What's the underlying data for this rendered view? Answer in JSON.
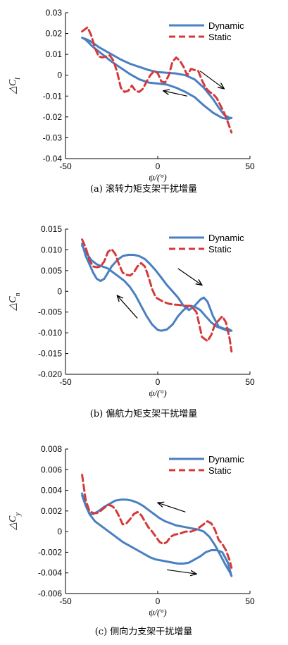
{
  "chart_data": [
    {
      "type": "line",
      "caption": "(a) 滚转力矩支架干扰增量",
      "xlabel": "ψ/(°)",
      "ylabel": "△C",
      "ylabel_sub": "l",
      "xlim": [
        -50,
        50
      ],
      "ylim": [
        -0.04,
        0.03
      ],
      "xticks": [
        -50,
        0,
        50
      ],
      "yticks": [
        -0.04,
        -0.03,
        -0.02,
        -0.01,
        0,
        0.01,
        0.02,
        0.03
      ],
      "ytick_labels": [
        "-0.04",
        "-0.03",
        "-0.02",
        "-0.01",
        "0",
        "0.01",
        "0.02",
        "0.03"
      ],
      "legend_position": "top-right",
      "series": [
        {
          "name": "Dynamic",
          "color": "#4a7fc1",
          "style": "solid",
          "x": [
            -41,
            -38,
            -35,
            -32,
            -28,
            -24,
            -20,
            -15,
            -10,
            -5,
            0,
            5,
            10,
            15,
            20,
            25,
            30,
            33,
            36,
            39,
            40,
            38,
            35,
            30,
            25,
            20,
            15,
            10,
            5,
            0,
            -5,
            -10,
            -15,
            -20,
            -25,
            -30,
            -35,
            -39,
            -41
          ],
          "y": [
            0.018,
            0.017,
            0.0155,
            0.0135,
            0.0115,
            0.0095,
            0.0075,
            0.0055,
            0.004,
            0.0025,
            0.0015,
            0.0012,
            0.0008,
            0.0,
            -0.002,
            -0.006,
            -0.0115,
            -0.0155,
            -0.019,
            -0.0205,
            -0.0205,
            -0.021,
            -0.0205,
            -0.018,
            -0.0145,
            -0.0105,
            -0.008,
            -0.006,
            -0.0045,
            -0.004,
            -0.0035,
            -0.002,
            0.0005,
            0.0035,
            0.0065,
            0.01,
            0.0135,
            0.017,
            0.018
          ]
        },
        {
          "name": "Static",
          "color": "#d43a3a",
          "style": "dashed",
          "x": [
            -41,
            -38,
            -36,
            -34,
            -32,
            -30,
            -28,
            -26,
            -24,
            -22,
            -20,
            -18,
            -16,
            -14,
            -12,
            -10,
            -8,
            -6,
            -4,
            -2,
            0,
            2,
            4,
            6,
            8,
            10,
            12,
            14,
            16,
            18,
            20,
            22,
            24,
            26,
            28,
            30,
            32,
            34,
            36,
            38,
            40
          ],
          "y": [
            0.021,
            0.023,
            0.019,
            0.013,
            0.009,
            0.0085,
            0.009,
            0.0095,
            0.007,
            0.0015,
            -0.006,
            -0.008,
            -0.0075,
            -0.005,
            -0.0075,
            -0.008,
            -0.0065,
            -0.003,
            0.0,
            0.002,
            0.001,
            -0.003,
            -0.0035,
            0.0,
            0.0065,
            0.0085,
            0.007,
            0.004,
            0.0,
            0.003,
            0.0025,
            0.002,
            -0.0025,
            -0.006,
            -0.008,
            -0.009,
            -0.011,
            -0.0145,
            -0.018,
            -0.0225,
            -0.0275
          ]
        }
      ],
      "arrows": [
        {
          "from": [
            23,
            0.002
          ],
          "to": [
            36,
            -0.0065
          ]
        },
        {
          "from": [
            16,
            -0.01
          ],
          "to": [
            3,
            -0.0075
          ]
        }
      ]
    },
    {
      "type": "line",
      "caption": "(b) 偏航力矩支架干扰增量",
      "xlabel": "ψ/(°)",
      "ylabel": "△C",
      "ylabel_sub": "n",
      "xlim": [
        -50,
        50
      ],
      "ylim": [
        -0.02,
        0.015
      ],
      "xticks": [
        -50,
        0,
        50
      ],
      "yticks": [
        -0.02,
        -0.015,
        -0.01,
        -0.005,
        0,
        0.005,
        0.01,
        0.015
      ],
      "ytick_labels": [
        "-0.020",
        "-0.015",
        "-0.010",
        "-0.005",
        "0",
        "0.005",
        "0.010",
        "0.015"
      ],
      "legend_position": "top-right",
      "series": [
        {
          "name": "Dynamic",
          "color": "#4a7fc1",
          "style": "solid",
          "x": [
            -41,
            -39,
            -37,
            -35,
            -33,
            -31,
            -29,
            -27,
            -25,
            -22,
            -19,
            -16,
            -13,
            -10,
            -7,
            -4,
            -1,
            2,
            5,
            8,
            11,
            14,
            17,
            20,
            23,
            25,
            27,
            30,
            33,
            36,
            38,
            40,
            38,
            35,
            32,
            29,
            26,
            23,
            20,
            17,
            14,
            11,
            8,
            5,
            2,
            0,
            -3,
            -6,
            -9,
            -12,
            -15,
            -18,
            -21,
            -24,
            -27,
            -30,
            -33,
            -36,
            -39,
            -41
          ],
          "y": [
            0.0115,
            0.0085,
            0.0065,
            0.0045,
            0.003,
            0.0025,
            0.003,
            0.0045,
            0.006,
            0.0075,
            0.0085,
            0.0088,
            0.0088,
            0.0085,
            0.0078,
            0.0065,
            0.005,
            0.0033,
            0.0015,
            0.0,
            -0.0015,
            -0.0035,
            -0.0045,
            -0.0035,
            -0.002,
            -0.0015,
            -0.0025,
            -0.006,
            -0.0085,
            -0.009,
            -0.009,
            -0.0095,
            -0.0095,
            -0.009,
            -0.0085,
            -0.0075,
            -0.006,
            -0.0045,
            -0.0037,
            -0.0035,
            -0.0045,
            -0.006,
            -0.008,
            -0.0092,
            -0.0095,
            -0.0093,
            -0.008,
            -0.006,
            -0.0035,
            -0.001,
            0.001,
            0.0025,
            0.0035,
            0.0045,
            0.0055,
            0.006,
            0.0065,
            0.0075,
            0.0095,
            0.011
          ]
        },
        {
          "name": "Static",
          "color": "#d43a3a",
          "style": "dashed",
          "x": [
            -41,
            -39,
            -37,
            -35,
            -33,
            -31,
            -29,
            -27,
            -25,
            -23,
            -21,
            -19,
            -17,
            -15,
            -13,
            -11,
            -9,
            -7,
            -5,
            -3,
            -1,
            1,
            3,
            6,
            9,
            12,
            15,
            18,
            21,
            24,
            27,
            29,
            31,
            33,
            35,
            37,
            39,
            40
          ],
          "y": [
            0.0125,
            0.0105,
            0.0075,
            0.006,
            0.0058,
            0.006,
            0.0072,
            0.0095,
            0.0102,
            0.009,
            0.0065,
            0.0045,
            0.004,
            0.0038,
            0.0045,
            0.006,
            0.0068,
            0.006,
            0.0035,
            0.0005,
            -0.0015,
            -0.002,
            -0.0025,
            -0.003,
            -0.0032,
            -0.0033,
            -0.0035,
            -0.0035,
            -0.005,
            -0.011,
            -0.012,
            -0.0105,
            -0.008,
            -0.007,
            -0.006,
            -0.0075,
            -0.0115,
            -0.0145
          ]
        }
      ],
      "arrows": [
        {
          "from": [
            11,
            0.0055
          ],
          "to": [
            24,
            0.0015
          ]
        },
        {
          "from": [
            -11,
            -0.0065
          ],
          "to": [
            -22,
            -0.001
          ]
        }
      ]
    },
    {
      "type": "line",
      "caption": "(c) 侧向力支架干扰增量",
      "xlabel": "ψ/(°)",
      "ylabel": "△C",
      "ylabel_sub": "y",
      "xlim": [
        -50,
        50
      ],
      "ylim": [
        -0.006,
        0.008
      ],
      "xticks": [
        -50,
        0,
        50
      ],
      "yticks": [
        -0.006,
        -0.004,
        -0.002,
        0,
        0.002,
        0.004,
        0.006,
        0.008
      ],
      "ytick_labels": [
        "-0.006",
        "-0.004",
        "-0.002",
        "0",
        "0.002",
        "0.004",
        "0.006",
        "0.008"
      ],
      "legend_position": "top-right",
      "series": [
        {
          "name": "Dynamic",
          "color": "#4a7fc1",
          "style": "solid",
          "x": [
            -41,
            -39,
            -37,
            -35,
            -32,
            -29,
            -26,
            -23,
            -20,
            -17,
            -14,
            -11,
            -8,
            -5,
            -2,
            1,
            4,
            7,
            10,
            13,
            16,
            19,
            22,
            25,
            28,
            31,
            34,
            37,
            39,
            40,
            38,
            35,
            32,
            29,
            26,
            23,
            20,
            17,
            14,
            11,
            8,
            5,
            2,
            -1,
            -4,
            -7,
            -10,
            -13,
            -16,
            -19,
            -22,
            -25,
            -28,
            -31,
            -34,
            -37,
            -39,
            -41
          ],
          "y": [
            0.0035,
            0.0025,
            0.0018,
            0.0017,
            0.002,
            0.0024,
            0.0027,
            0.003,
            0.0031,
            0.0031,
            0.003,
            0.0028,
            0.0025,
            0.0021,
            0.0017,
            0.0013,
            0.001,
            0.0008,
            0.0006,
            0.0005,
            0.0004,
            0.0003,
            0.0002,
            0.0,
            -0.0005,
            -0.0013,
            -0.0023,
            -0.0033,
            -0.0039,
            -0.0043,
            -0.003,
            -0.002,
            -0.0018,
            -0.0018,
            -0.002,
            -0.0024,
            -0.0027,
            -0.003,
            -0.0031,
            -0.0031,
            -0.003,
            -0.0029,
            -0.0028,
            -0.0027,
            -0.0025,
            -0.0022,
            -0.0019,
            -0.0016,
            -0.0013,
            -0.001,
            -0.0006,
            -0.0002,
            0.0002,
            0.0006,
            0.001,
            0.0017,
            0.0025,
            0.0037
          ]
        },
        {
          "name": "Static",
          "color": "#d43a3a",
          "style": "dashed",
          "x": [
            -41,
            -39,
            -37,
            -35,
            -33,
            -31,
            -29,
            -27,
            -25,
            -23,
            -21,
            -19,
            -17,
            -15,
            -13,
            -11,
            -9,
            -7,
            -5,
            -3,
            -1,
            1,
            3,
            5,
            7,
            9,
            12,
            15,
            18,
            21,
            24,
            27,
            29,
            31,
            33,
            35,
            37,
            39,
            40
          ],
          "y": [
            0.0055,
            0.003,
            0.002,
            0.0018,
            0.0018,
            0.002,
            0.0023,
            0.0026,
            0.0025,
            0.0022,
            0.0015,
            0.0007,
            0.0008,
            0.0012,
            0.0017,
            0.0019,
            0.0016,
            0.001,
            0.0004,
            0.0,
            -0.0005,
            -0.001,
            -0.0012,
            -0.001,
            -0.0005,
            -0.0003,
            -0.0002,
            0.0,
            0.0,
            0.0002,
            0.0006,
            0.001,
            0.0008,
            0.0002,
            -0.0008,
            -0.0012,
            -0.0018,
            -0.0028,
            -0.0035
          ]
        }
      ],
      "arrows": [
        {
          "from": [
            15,
            0.0019
          ],
          "to": [
            0,
            0.0028
          ]
        },
        {
          "from": [
            5,
            -0.0037
          ],
          "to": [
            21,
            -0.0041
          ]
        }
      ]
    }
  ]
}
